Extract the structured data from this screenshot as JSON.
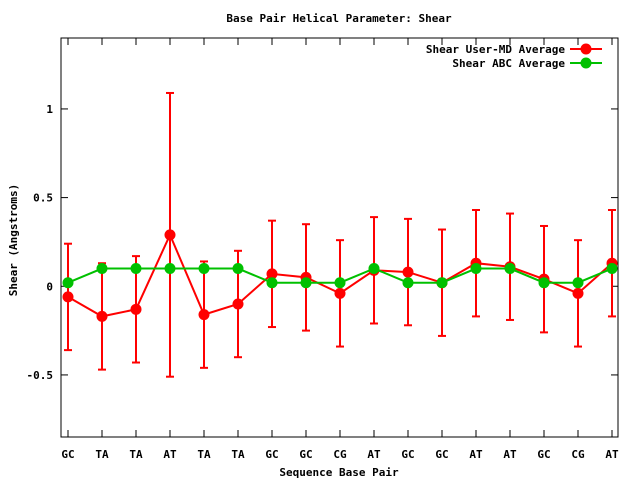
{
  "chart_data": {
    "type": "line",
    "title": "Base Pair Helical Parameter: Shear",
    "xlabel": "Sequence Base Pair",
    "ylabel": "Shear (Angstroms)",
    "categories": [
      "GC",
      "TA",
      "TA",
      "AT",
      "TA",
      "TA",
      "GC",
      "GC",
      "CG",
      "AT",
      "GC",
      "GC",
      "AT",
      "AT",
      "GC",
      "CG",
      "AT"
    ],
    "ylim": [
      -0.85,
      1.4
    ],
    "yticks": [
      -0.5,
      0,
      0.5,
      1
    ],
    "ytick_labels": [
      "-0.5",
      "0",
      "0.5",
      "1"
    ],
    "grid": false,
    "legend_position": "top-right",
    "series": [
      {
        "name": "Shear User-MD Average",
        "color": "#ff0000",
        "values": [
          -0.06,
          -0.17,
          -0.13,
          0.29,
          -0.16,
          -0.1,
          0.07,
          0.05,
          -0.04,
          0.09,
          0.08,
          0.02,
          0.13,
          0.11,
          0.04,
          -0.04,
          0.13
        ],
        "errors": [
          0.3,
          0.3,
          0.3,
          0.8,
          0.3,
          0.3,
          0.3,
          0.3,
          0.3,
          0.3,
          0.3,
          0.3,
          0.3,
          0.3,
          0.3,
          0.3,
          0.3
        ]
      },
      {
        "name": "Shear ABC Average",
        "color": "#00c000",
        "values": [
          0.02,
          0.1,
          0.1,
          0.1,
          0.1,
          0.1,
          0.02,
          0.02,
          0.02,
          0.1,
          0.02,
          0.02,
          0.1,
          0.1,
          0.02,
          0.02,
          0.1
        ],
        "errors": [
          0,
          0.01,
          0,
          0,
          0,
          0,
          0,
          0,
          0,
          0,
          0,
          0,
          0,
          0,
          0,
          0,
          0
        ]
      }
    ]
  }
}
